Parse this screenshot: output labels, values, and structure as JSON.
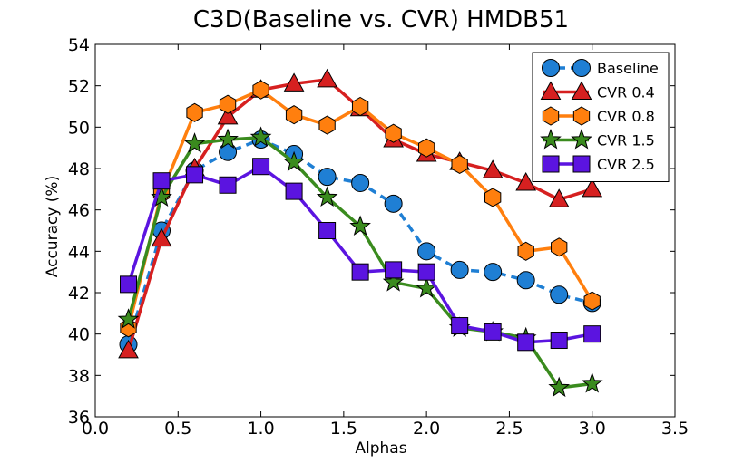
{
  "chart_data": {
    "type": "line",
    "title": "C3D(Baseline vs. CVR) HMDB51",
    "xlabel": "Alphas",
    "ylabel": "Accuracy (%)",
    "xlim": [
      0.0,
      3.5
    ],
    "ylim": [
      36,
      54
    ],
    "xticks": [
      "0.0",
      "0.5",
      "1.0",
      "1.5",
      "2.0",
      "2.5",
      "3.0",
      "3.5"
    ],
    "yticks": [
      "36",
      "38",
      "40",
      "42",
      "44",
      "46",
      "48",
      "50",
      "52",
      "54"
    ],
    "grid": false,
    "legend_position": "top-right",
    "x": [
      0.2,
      0.4,
      0.6,
      0.8,
      1.0,
      1.2,
      1.4,
      1.6,
      1.8,
      2.0,
      2.2,
      2.4,
      2.6,
      2.8,
      3.0
    ],
    "series": [
      {
        "name": "Baseline",
        "color": "#1f7fd4",
        "marker": "circle",
        "line": "dashed",
        "values": [
          39.5,
          45.0,
          47.9,
          48.8,
          49.4,
          48.7,
          47.6,
          47.3,
          46.3,
          44.0,
          43.1,
          43.0,
          42.6,
          41.9,
          41.5
        ]
      },
      {
        "name": "CVR 0.4",
        "color": "#d62020",
        "marker": "triangle",
        "line": "solid",
        "values": [
          39.2,
          44.6,
          48.0,
          50.5,
          51.8,
          52.1,
          52.3,
          50.9,
          49.4,
          48.7,
          48.3,
          47.9,
          47.3,
          46.5,
          47.0
        ]
      },
      {
        "name": "CVR 0.8",
        "color": "#ff7f0e",
        "marker": "hexagon",
        "line": "solid",
        "values": [
          40.3,
          46.8,
          50.7,
          51.1,
          51.8,
          50.6,
          50.1,
          51.0,
          49.7,
          49.0,
          48.2,
          46.6,
          44.0,
          44.2,
          41.6
        ]
      },
      {
        "name": "CVR 1.5",
        "color": "#3a8b1e",
        "marker": "star",
        "line": "solid",
        "values": [
          40.7,
          46.6,
          49.2,
          49.4,
          49.5,
          48.3,
          46.6,
          45.2,
          42.5,
          42.2,
          40.3,
          40.1,
          39.8,
          37.4,
          37.6
        ]
      },
      {
        "name": "CVR 2.5",
        "color": "#5b14e0",
        "marker": "square",
        "line": "solid",
        "values": [
          42.4,
          47.4,
          47.7,
          47.2,
          48.1,
          46.9,
          45.0,
          43.0,
          43.1,
          43.0,
          40.4,
          40.1,
          39.6,
          39.7,
          40.0
        ]
      }
    ]
  }
}
